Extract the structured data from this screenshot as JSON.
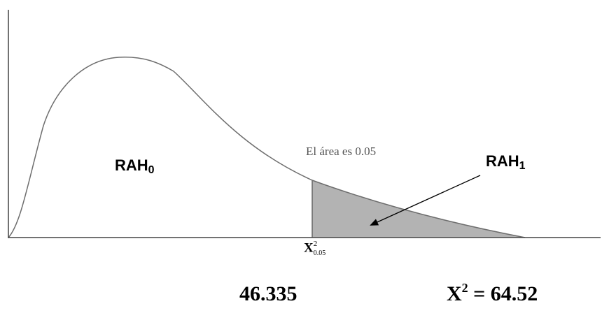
{
  "labels": {
    "rah0_main": "RAH",
    "rah0_sub": "0",
    "rah1_main": "RAH",
    "rah1_sub": "1",
    "area_note": "El área es 0.05",
    "crit_symbol": "X",
    "crit_sup": "2",
    "crit_sub": "0.05",
    "critical_value": "46.335",
    "statistic_symbol": "X",
    "statistic_sup": "2",
    "statistic_value": "= 64.52"
  },
  "colors": {
    "curve": "#6e6e6e",
    "axis": "#444444",
    "shaded_region": "#b3b3b3",
    "arrow": "#000000"
  },
  "distribution": {
    "type": "chi-square",
    "significance": 0.05,
    "critical_value": 46.335,
    "test_statistic": 64.52
  }
}
